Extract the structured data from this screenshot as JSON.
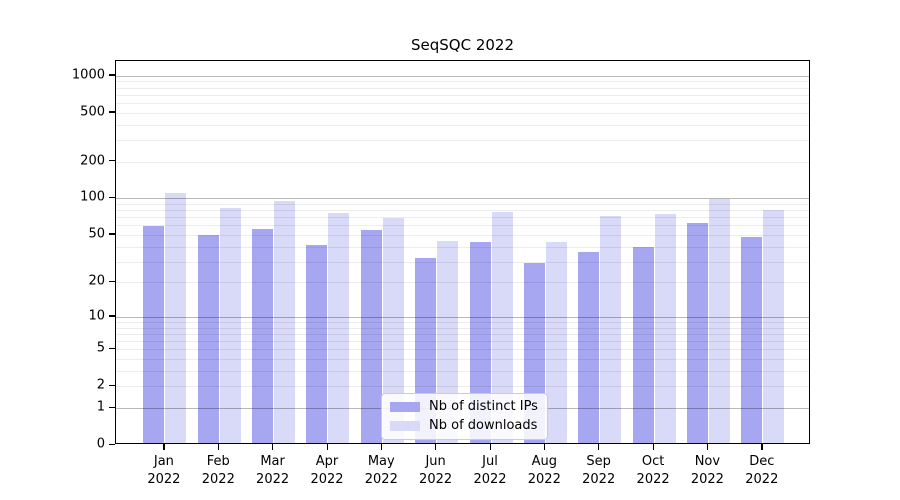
{
  "chart_data": {
    "type": "bar",
    "title": "SeqSQC 2022",
    "categories": [
      "Jan",
      "Feb",
      "Mar",
      "Apr",
      "May",
      "Jun",
      "Jul",
      "Aug",
      "Sep",
      "Oct",
      "Nov",
      "Dec"
    ],
    "category_year": "2022",
    "series": [
      {
        "name": "Nb of distinct IPs",
        "color": "#a6a6f1",
        "values": [
          57,
          48,
          54,
          40,
          53,
          31,
          42,
          28,
          35,
          38,
          61,
          46
        ]
      },
      {
        "name": "Nb of downloads",
        "color": "#d9d9f8",
        "values": [
          107,
          80,
          92,
          73,
          66,
          43,
          75,
          42,
          69,
          72,
          96,
          77
        ]
      }
    ],
    "xlabel": "",
    "ylabel": "",
    "yscale": "log1p",
    "ylim": [
      0,
      1320
    ],
    "y_ticks": [
      {
        "value": 1000,
        "label": "1000"
      },
      {
        "value": 500,
        "label": "500"
      },
      {
        "value": 200,
        "label": "200"
      },
      {
        "value": 100,
        "label": "100"
      },
      {
        "value": 50,
        "label": "50"
      },
      {
        "value": 20,
        "label": "20"
      },
      {
        "value": 10,
        "label": "10"
      },
      {
        "value": 5,
        "label": "5"
      },
      {
        "value": 2,
        "label": "2"
      },
      {
        "value": 1,
        "label": "1"
      },
      {
        "value": 0,
        "label": "0"
      }
    ],
    "y_major_gridlines": [
      1,
      10,
      100,
      1000
    ],
    "y_minor_gridlines": [
      2,
      3,
      4,
      5,
      6,
      7,
      8,
      9,
      20,
      30,
      40,
      50,
      60,
      70,
      80,
      90,
      200,
      300,
      400,
      500,
      600,
      700,
      800,
      900
    ],
    "grid": true,
    "legend_position": "lower center (inside plot)"
  },
  "colors": {
    "background": "#ffffff",
    "spine": "#000000",
    "major_grid": "rgba(0,0,0,0.28)",
    "minor_grid": "rgba(0,0,0,0.075)",
    "legend_border": "#cccccc",
    "legend_background": "rgba(255,255,255,0.85)"
  }
}
